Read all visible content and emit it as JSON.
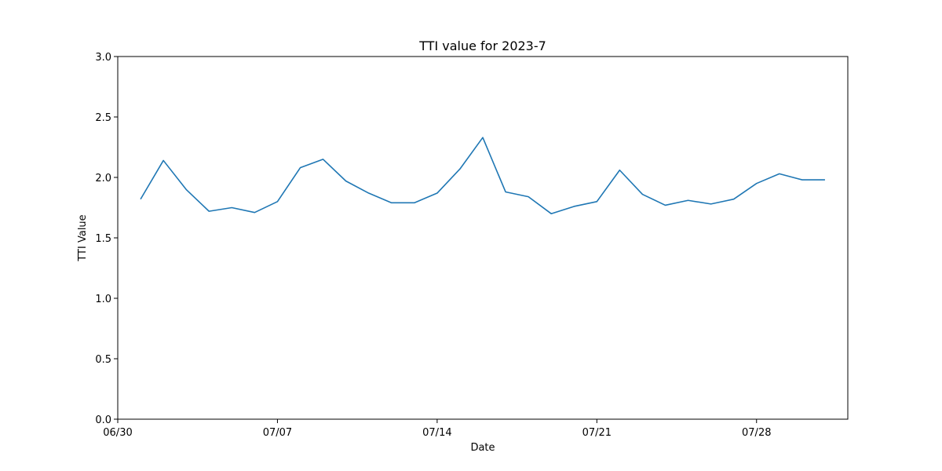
{
  "chart_data": {
    "type": "line",
    "title": "TTI value for 2023-7",
    "xlabel": "Date",
    "ylabel": "TTI Value",
    "ylim": [
      0,
      3.0
    ],
    "xlim": [
      "2023-06-30",
      "2023-08-01"
    ],
    "yticks": [
      0.0,
      0.5,
      1.0,
      1.5,
      2.0,
      2.5,
      3.0
    ],
    "ytick_labels": [
      "0.0",
      "0.5",
      "1.0",
      "1.5",
      "2.0",
      "2.5",
      "3.0"
    ],
    "xticks": [
      "2023-06-30",
      "2023-07-07",
      "2023-07-14",
      "2023-07-21",
      "2023-07-28"
    ],
    "xtick_labels": [
      "06/30",
      "07/07",
      "07/14",
      "07/21",
      "07/28"
    ],
    "grid": false,
    "series": [
      {
        "color": "#1f77b4",
        "x": [
          "2023-07-01",
          "2023-07-02",
          "2023-07-03",
          "2023-07-04",
          "2023-07-05",
          "2023-07-06",
          "2023-07-07",
          "2023-07-08",
          "2023-07-09",
          "2023-07-10",
          "2023-07-11",
          "2023-07-12",
          "2023-07-13",
          "2023-07-14",
          "2023-07-15",
          "2023-07-16",
          "2023-07-17",
          "2023-07-18",
          "2023-07-19",
          "2023-07-20",
          "2023-07-21",
          "2023-07-22",
          "2023-07-23",
          "2023-07-24",
          "2023-07-25",
          "2023-07-26",
          "2023-07-27",
          "2023-07-28",
          "2023-07-29",
          "2023-07-30",
          "2023-07-31"
        ],
        "values": [
          1.82,
          2.14,
          1.9,
          1.72,
          1.75,
          1.71,
          1.8,
          2.08,
          2.15,
          1.97,
          1.87,
          1.79,
          1.79,
          1.87,
          2.07,
          2.33,
          1.88,
          1.84,
          1.7,
          1.76,
          1.8,
          2.06,
          1.86,
          1.77,
          1.81,
          1.78,
          1.82,
          1.95,
          2.03,
          1.98,
          1.98
        ]
      }
    ]
  }
}
